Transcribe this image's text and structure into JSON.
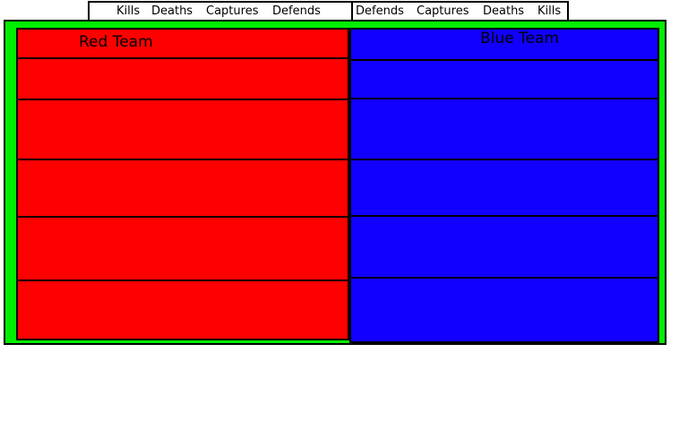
{
  "colors": {
    "red_team": "#ff0000",
    "blue_team": "#1100ff",
    "frame": "#00ee00",
    "outline": "#000000"
  },
  "red": {
    "title": "Red Team",
    "columns": [
      "Kills",
      "Deaths",
      "Captures",
      "Defends"
    ]
  },
  "blue": {
    "title": "Blue Team",
    "columns": [
      "Defends",
      "Captures",
      "Deaths",
      "Kills"
    ]
  }
}
